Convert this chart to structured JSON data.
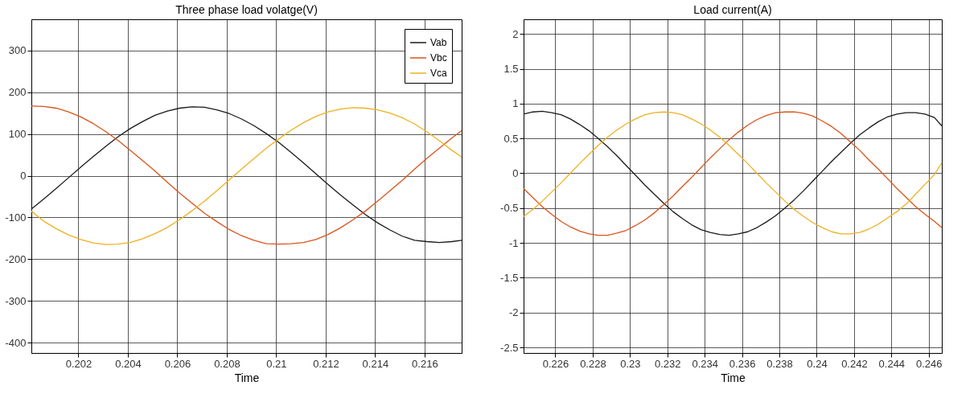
{
  "chart_data": [
    {
      "type": "line",
      "title": "Three phase load volatge(V)",
      "xlabel": "Time",
      "x": [
        0.2001,
        0.2006,
        0.2011,
        0.2016,
        0.2021,
        0.2026,
        0.2031,
        0.2036,
        0.2041,
        0.2046,
        0.2051,
        0.2056,
        0.2061,
        0.2066,
        0.2071,
        0.2076,
        0.2081,
        0.2086,
        0.2091,
        0.2096,
        0.2101,
        0.2106,
        0.2111,
        0.2116,
        0.2121,
        0.2126,
        0.2131,
        0.2136,
        0.2141,
        0.2146,
        0.2151,
        0.2156,
        0.2161,
        0.2166,
        0.2171,
        0.2175
      ],
      "series": [
        {
          "name": "Vab",
          "color": "#1a1a1a",
          "values": [
            -80,
            -56,
            -31,
            -5,
            21,
            46,
            70,
            93,
            113,
            130,
            145,
            155,
            162,
            165,
            164,
            158,
            149,
            136,
            120,
            101,
            80,
            56,
            31,
            5,
            -21,
            -46,
            -70,
            -93,
            -113,
            -130,
            -145,
            -155,
            -158,
            -160,
            -158,
            -155
          ]
        },
        {
          "name": "Vbc",
          "color": "#d95319",
          "values": [
            167,
            166,
            162,
            153,
            141,
            125,
            106,
            85,
            61,
            36,
            11,
            -16,
            -42,
            -66,
            -90,
            -110,
            -129,
            -144,
            -155,
            -163,
            -164,
            -163,
            -160,
            -153,
            -141,
            -125,
            -106,
            -85,
            -61,
            -36,
            -11,
            16,
            42,
            66,
            90,
            108
          ]
        },
        {
          "name": "Vca",
          "color": "#edb120",
          "values": [
            -85,
            -109,
            -127,
            -142,
            -153,
            -161,
            -165,
            -164,
            -160,
            -151,
            -139,
            -124,
            -105,
            -84,
            -61,
            -36,
            -10,
            16,
            41,
            66,
            88,
            109,
            127,
            142,
            153,
            160,
            163,
            162,
            158,
            150,
            139,
            124,
            105,
            84,
            61,
            45
          ]
        }
      ],
      "xlim": [
        0.2001,
        0.2175
      ],
      "ylim": [
        -425,
        375
      ],
      "xticks": [
        0.202,
        0.204,
        0.206,
        0.208,
        0.21,
        0.212,
        0.214,
        0.216
      ],
      "yticks": [
        -400,
        -300,
        -200,
        -100,
        0,
        100,
        200,
        300
      ],
      "grid": true,
      "legend": "top right",
      "marker": "none",
      "line_style": "solid"
    },
    {
      "type": "line",
      "title": "Load current(A)",
      "xlabel": "Time",
      "x": [
        0.2243,
        0.2248,
        0.2253,
        0.2258,
        0.2263,
        0.2268,
        0.2273,
        0.2278,
        0.2283,
        0.2288,
        0.2293,
        0.2298,
        0.2303,
        0.2308,
        0.2313,
        0.2318,
        0.2323,
        0.2328,
        0.2333,
        0.2338,
        0.2343,
        0.2348,
        0.2353,
        0.2358,
        0.2363,
        0.2368,
        0.2373,
        0.2378,
        0.2383,
        0.2388,
        0.2393,
        0.2398,
        0.2403,
        0.2408,
        0.2413,
        0.2418,
        0.2423,
        0.2428,
        0.2433,
        0.2438,
        0.2443,
        0.2448,
        0.2453,
        0.2458,
        0.2463,
        0.2467
      ],
      "series": [
        {
          "color": "#1a1a1a",
          "values": [
            0.85,
            0.88,
            0.89,
            0.87,
            0.84,
            0.78,
            0.7,
            0.61,
            0.5,
            0.38,
            0.25,
            0.11,
            -0.03,
            -0.17,
            -0.3,
            -0.43,
            -0.55,
            -0.65,
            -0.74,
            -0.81,
            -0.85,
            -0.88,
            -0.89,
            -0.87,
            -0.84,
            -0.78,
            -0.7,
            -0.61,
            -0.5,
            -0.38,
            -0.25,
            -0.11,
            0.03,
            0.17,
            0.3,
            0.43,
            0.55,
            0.65,
            0.74,
            0.81,
            0.85,
            0.87,
            0.87,
            0.85,
            0.8,
            0.68
          ]
        },
        {
          "color": "#d95319",
          "values": [
            -0.22,
            -0.35,
            -0.48,
            -0.59,
            -0.69,
            -0.77,
            -0.83,
            -0.87,
            -0.89,
            -0.89,
            -0.86,
            -0.82,
            -0.75,
            -0.67,
            -0.57,
            -0.45,
            -0.33,
            -0.19,
            -0.06,
            0.08,
            0.22,
            0.35,
            0.48,
            0.59,
            0.69,
            0.77,
            0.83,
            0.87,
            0.88,
            0.88,
            0.86,
            0.82,
            0.75,
            0.67,
            0.57,
            0.45,
            0.33,
            0.19,
            0.06,
            -0.08,
            -0.22,
            -0.35,
            -0.48,
            -0.59,
            -0.69,
            -0.78
          ]
        },
        {
          "color": "#edb120",
          "values": [
            -0.62,
            -0.52,
            -0.4,
            -0.27,
            -0.14,
            0,
            0.14,
            0.27,
            0.4,
            0.52,
            0.62,
            0.71,
            0.78,
            0.84,
            0.87,
            0.88,
            0.87,
            0.84,
            0.78,
            0.71,
            0.62,
            0.52,
            0.4,
            0.27,
            0.14,
            0,
            -0.14,
            -0.27,
            -0.4,
            -0.52,
            -0.62,
            -0.71,
            -0.78,
            -0.84,
            -0.87,
            -0.87,
            -0.85,
            -0.8,
            -0.73,
            -0.64,
            -0.55,
            -0.44,
            -0.3,
            -0.16,
            -0.02,
            0.15
          ]
        }
      ],
      "xlim": [
        0.2243,
        0.2467
      ],
      "ylim": [
        -2.58,
        2.21
      ],
      "xticks": [
        0.226,
        0.228,
        0.23,
        0.232,
        0.234,
        0.236,
        0.238,
        0.24,
        0.242,
        0.244,
        0.246
      ],
      "yticks": [
        -2.5,
        -2,
        -1.5,
        -1,
        -0.5,
        0,
        0.5,
        1,
        1.5,
        2
      ],
      "grid": true,
      "marker": "none",
      "line_style": "solid"
    }
  ]
}
